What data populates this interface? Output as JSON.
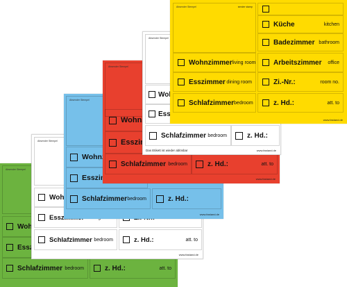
{
  "common": {
    "stamp_de": "Absender Stempel",
    "stamp_en": "sender stamp",
    "url": "www.fastand.de",
    "note": "Das Etikett ist wieder ablösbar",
    "rooms": {
      "living_de": "Wohnzimmer",
      "living_en": "living room",
      "dining_de": "Esszimmer",
      "dining_en": "dining room",
      "bed_de": "Schlafzimmer",
      "bed_en": "bedroom",
      "kitchen_de": "Küche",
      "kitchen_en": "kitchen",
      "bath_de": "Badezimmer",
      "bath_en": "bathroom",
      "office_de": "Arbeitszimmer",
      "office_en": "office",
      "roomno_de": "Zi.-Nr.:",
      "roomno_en": "room no.",
      "attn_de": "z. Hd.:",
      "attn_en": "att. to"
    }
  },
  "colors": {
    "green": "#6cb33f",
    "white": "#ffffff",
    "blue": "#76c0ea",
    "red": "#e8402e",
    "yellow": "#ffdb00"
  }
}
